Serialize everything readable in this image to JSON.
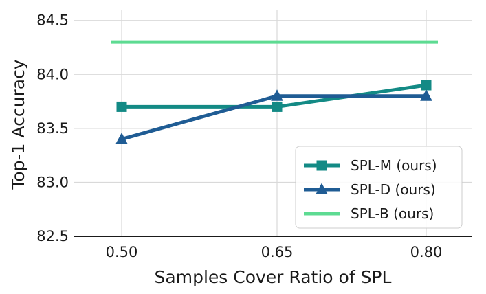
{
  "chart_data": {
    "type": "line",
    "xlabel": "Samples Cover Ratio of SPL",
    "ylabel": "Top-1 Accuracy",
    "categories": [
      "0.50",
      "0.65",
      "0.80"
    ],
    "ylim": [
      82.5,
      84.6
    ],
    "yticks": [
      "82.5",
      "83.0",
      "83.5",
      "84.0",
      "84.5"
    ],
    "grid": true,
    "legend_position": "bottom-right",
    "series": [
      {
        "name": "SPL-M (ours)",
        "values": [
          83.7,
          83.7,
          83.9
        ],
        "color": "#138a85",
        "marker": "square"
      },
      {
        "name": "SPL-D (ours)",
        "values": [
          83.4,
          83.8,
          83.8
        ],
        "color": "#1f5c94",
        "marker": "triangle"
      },
      {
        "name": "SPL-B (ours)",
        "values": [
          84.3,
          84.3,
          84.3
        ],
        "color": "#5ddb92",
        "marker": "none"
      }
    ]
  }
}
